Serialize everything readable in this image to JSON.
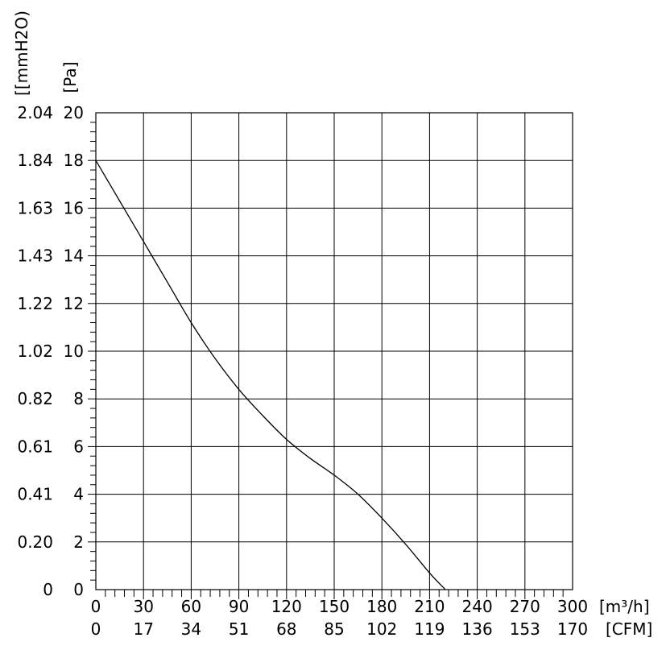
{
  "chart_data": {
    "type": "line",
    "title": "",
    "y_axis_left_unit": "[[mmH2O)",
    "y_axis_right_unit": "[Pa]",
    "x_axis_unit_m3h": "[m³/h]",
    "x_axis_unit_cfm": "[CFM]",
    "xlim": [
      0,
      300
    ],
    "ylim": [
      0,
      20
    ],
    "x_ticks_m3h": [
      "0",
      "30",
      "60",
      "90",
      "120",
      "150",
      "180",
      "210",
      "240",
      "270",
      "300"
    ],
    "x_ticks_cfm": [
      "0",
      "17",
      "34",
      "51",
      "68",
      "85",
      "102",
      "119",
      "136",
      "153",
      "170"
    ],
    "y_ticks_pa": [
      "0",
      "2",
      "4",
      "6",
      "8",
      "10",
      "12",
      "14",
      "16",
      "18",
      "20"
    ],
    "y_ticks_mmh2o": [
      "0",
      "0.20",
      "0.41",
      "0.61",
      "0.82",
      "1.02",
      "1.22",
      "1.43",
      "1.63",
      "1.84",
      "2.04"
    ],
    "grid": true,
    "series": [
      {
        "x": [
          0,
          15,
          30,
          45,
          60,
          75,
          90,
          105,
          120,
          135,
          150,
          165,
          180,
          195,
          210,
          220
        ],
        "y": [
          18.0,
          16.3,
          14.6,
          12.9,
          11.2,
          9.7,
          8.4,
          7.3,
          6.3,
          5.5,
          4.8,
          4.0,
          3.0,
          1.9,
          0.7,
          0.0
        ]
      }
    ]
  }
}
